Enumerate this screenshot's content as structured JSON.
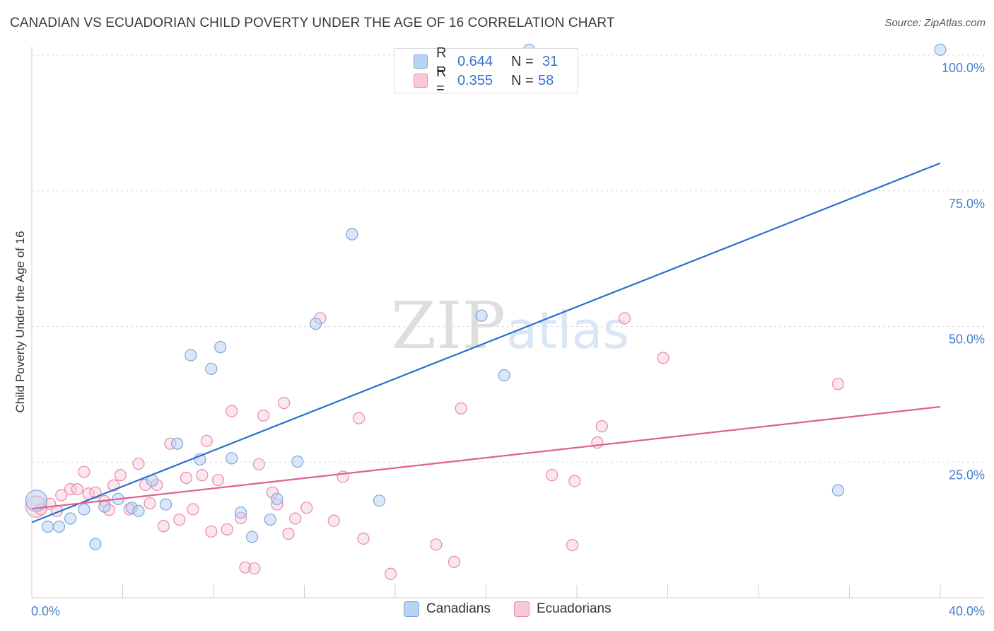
{
  "title": "CANADIAN VS ECUADORIAN CHILD POVERTY UNDER THE AGE OF 16 CORRELATION CHART",
  "source": "Source: ZipAtlas.com",
  "watermark": {
    "zip": "ZIP",
    "atlas": "atlas"
  },
  "legend": {
    "r_label": "R =",
    "n_label": "N =",
    "canadians": {
      "r": "0.644",
      "n": "31"
    },
    "ecuadorians": {
      "r": "0.355",
      "n": "58"
    }
  },
  "colors": {
    "canadian_fill": "#b9d3f3",
    "canadian_stroke": "#7ea6dc",
    "canadian_line": "#2c6fce",
    "ecuadorian_fill": "#f8c8d8",
    "ecuadorian_stroke": "#e88aab",
    "ecuadorian_line": "#e0608e",
    "tick_text": "#4a7fd0"
  },
  "chart_data": {
    "type": "scatter",
    "title": "CANADIAN VS ECUADORIAN CHILD POVERTY UNDER THE AGE OF 16 CORRELATION CHART",
    "xlabel": "",
    "ylabel": "Child Poverty Under the Age of 16",
    "xlim": [
      0,
      40
    ],
    "ylim": [
      0,
      100
    ],
    "x_tick_labels": [
      {
        "value": 0,
        "label": "0.0%"
      },
      {
        "value": 40,
        "label": "40.0%"
      }
    ],
    "y_tick_labels": [
      {
        "value": 25,
        "label": "25.0%"
      },
      {
        "value": 50,
        "label": "50.0%"
      },
      {
        "value": 75,
        "label": "75.0%"
      },
      {
        "value": 100,
        "label": "100.0%"
      }
    ],
    "grid": true,
    "legend_position": "bottom",
    "series": [
      {
        "name": "Canadians",
        "r": 0.644,
        "n": 31,
        "trend": {
          "x": [
            0,
            40
          ],
          "y": [
            13.9,
            80.1
          ]
        },
        "points": [
          [
            0.2,
            17.9,
            2
          ],
          [
            0.7,
            13.1,
            1
          ],
          [
            1.2,
            13.1,
            1
          ],
          [
            1.7,
            14.6,
            1
          ],
          [
            2.3,
            16.3,
            1
          ],
          [
            2.8,
            9.9,
            1
          ],
          [
            3.2,
            16.8,
            1
          ],
          [
            3.8,
            18.2,
            1
          ],
          [
            4.4,
            16.6,
            1
          ],
          [
            4.7,
            16.0,
            1
          ],
          [
            5.3,
            21.6,
            1
          ],
          [
            5.9,
            17.2,
            1
          ],
          [
            6.4,
            28.4,
            1
          ],
          [
            7.0,
            44.7,
            1
          ],
          [
            7.4,
            25.5,
            1
          ],
          [
            7.9,
            42.2,
            1
          ],
          [
            8.3,
            46.2,
            1
          ],
          [
            8.8,
            25.7,
            1
          ],
          [
            9.2,
            15.7,
            1
          ],
          [
            9.7,
            11.2,
            1
          ],
          [
            10.5,
            14.4,
            1
          ],
          [
            10.8,
            18.2,
            1
          ],
          [
            11.7,
            25.1,
            1
          ],
          [
            12.5,
            50.5,
            1
          ],
          [
            14.1,
            67.0,
            1
          ],
          [
            15.3,
            17.9,
            1
          ],
          [
            19.8,
            52.0,
            1
          ],
          [
            20.8,
            41.0,
            1
          ],
          [
            21.9,
            101.0,
            1
          ],
          [
            35.5,
            19.8,
            1
          ],
          [
            40.0,
            101.0,
            1
          ]
        ]
      },
      {
        "name": "Ecuadorians",
        "r": 0.355,
        "n": 58,
        "trend": {
          "x": [
            0,
            40
          ],
          "y": [
            16.4,
            35.2
          ]
        },
        "points": [
          [
            0.2,
            16.8,
            2
          ],
          [
            0.4,
            16.3,
            1
          ],
          [
            0.8,
            17.3,
            1
          ],
          [
            1.1,
            16.0,
            1
          ],
          [
            1.3,
            18.9,
            1
          ],
          [
            1.7,
            20.0,
            1
          ],
          [
            2.0,
            20.0,
            1
          ],
          [
            2.3,
            23.2,
            1
          ],
          [
            2.5,
            19.2,
            1
          ],
          [
            2.8,
            19.4,
            1
          ],
          [
            3.2,
            17.8,
            1
          ],
          [
            3.4,
            16.2,
            1
          ],
          [
            3.6,
            20.7,
            1
          ],
          [
            3.9,
            22.6,
            1
          ],
          [
            4.3,
            16.3,
            1
          ],
          [
            4.7,
            24.7,
            1
          ],
          [
            5.0,
            20.8,
            1
          ],
          [
            5.2,
            17.4,
            1
          ],
          [
            5.5,
            20.8,
            1
          ],
          [
            5.8,
            13.2,
            1
          ],
          [
            6.1,
            28.4,
            1
          ],
          [
            6.5,
            14.4,
            1
          ],
          [
            6.8,
            22.1,
            1
          ],
          [
            7.1,
            16.3,
            1
          ],
          [
            7.5,
            22.6,
            1
          ],
          [
            7.7,
            28.9,
            1
          ],
          [
            7.9,
            12.2,
            1
          ],
          [
            8.2,
            21.7,
            1
          ],
          [
            8.6,
            12.6,
            1
          ],
          [
            8.8,
            34.4,
            1
          ],
          [
            9.2,
            14.7,
            1
          ],
          [
            9.4,
            5.6,
            1
          ],
          [
            9.8,
            5.4,
            1
          ],
          [
            10.0,
            24.6,
            1
          ],
          [
            10.2,
            33.6,
            1
          ],
          [
            10.6,
            19.4,
            1
          ],
          [
            10.8,
            17.2,
            1
          ],
          [
            11.1,
            35.9,
            1
          ],
          [
            11.3,
            11.8,
            1
          ],
          [
            11.6,
            14.6,
            1
          ],
          [
            12.1,
            16.6,
            1
          ],
          [
            12.7,
            51.5,
            1
          ],
          [
            13.3,
            14.2,
            1
          ],
          [
            13.7,
            22.3,
            1
          ],
          [
            14.4,
            33.1,
            1
          ],
          [
            14.6,
            10.9,
            1
          ],
          [
            15.8,
            4.4,
            1
          ],
          [
            17.8,
            9.8,
            1
          ],
          [
            18.6,
            6.6,
            1
          ],
          [
            18.9,
            34.9,
            1
          ],
          [
            22.9,
            22.6,
            1
          ],
          [
            23.8,
            9.7,
            1
          ],
          [
            23.9,
            21.5,
            1
          ],
          [
            24.9,
            28.6,
            1
          ],
          [
            25.1,
            31.6,
            1
          ],
          [
            26.1,
            51.5,
            1
          ],
          [
            27.8,
            44.2,
            1
          ],
          [
            35.5,
            39.4,
            1
          ]
        ]
      }
    ]
  },
  "bottom_legend": {
    "canadians": "Canadians",
    "ecuadorians": "Ecuadorians"
  }
}
